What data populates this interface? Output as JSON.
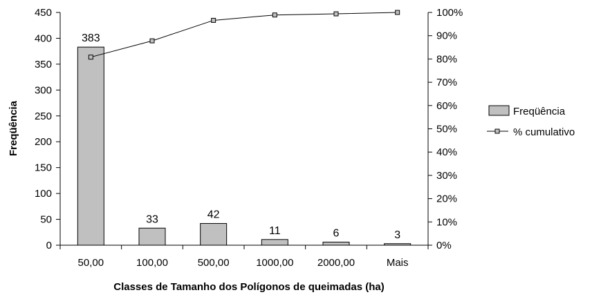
{
  "chart_data": {
    "type": "bar",
    "title": "",
    "xlabel": "Classes de Tamanho dos Polígonos de queimadas (ha)",
    "ylabel": "Freqüência",
    "categories": [
      "50,00",
      "100,00",
      "500,00",
      "1000,00",
      "2000,00",
      "Mais"
    ],
    "series": [
      {
        "name": "Freqüência",
        "type": "bar",
        "axis": "left",
        "values": [
          383,
          33,
          42,
          11,
          6,
          3
        ],
        "data_labels": [
          "383",
          "33",
          "42",
          "11",
          "6",
          "3"
        ],
        "color": "#c0c0c0"
      },
      {
        "name": "% cumulativo",
        "type": "line",
        "axis": "right",
        "values": [
          80.8,
          87.8,
          96.6,
          98.9,
          99.4,
          100
        ],
        "color": "#000000",
        "marker_color": "#c0c0c0"
      }
    ],
    "ylim": [
      0,
      450
    ],
    "yticks": [
      "0",
      "50",
      "100",
      "150",
      "200",
      "250",
      "300",
      "350",
      "400",
      "450"
    ],
    "y2lim": [
      0,
      100
    ],
    "y2ticks": [
      "0%",
      "10%",
      "20%",
      "30%",
      "40%",
      "50%",
      "60%",
      "70%",
      "80%",
      "90%",
      "100%"
    ],
    "grid": false,
    "legend": "right"
  }
}
